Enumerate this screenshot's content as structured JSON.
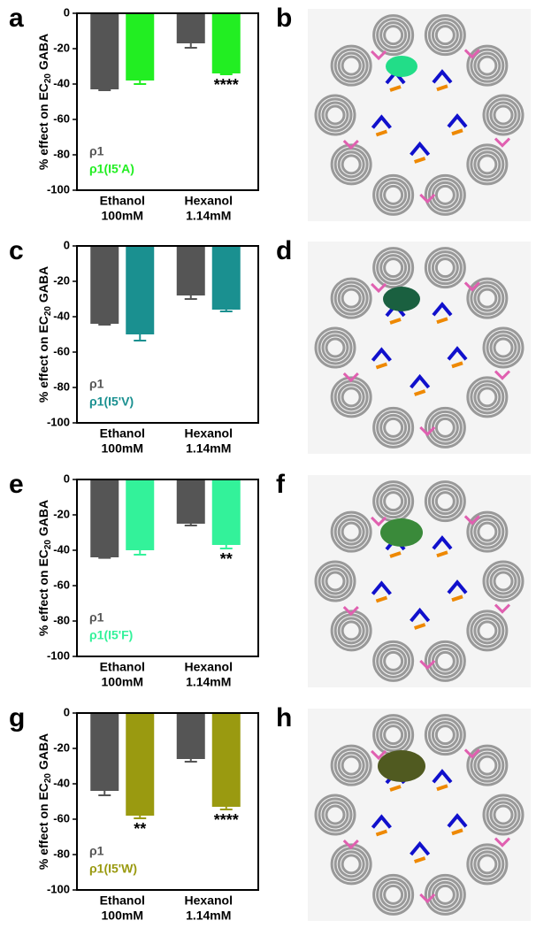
{
  "chart_data": [
    {
      "type": "bar",
      "panel": "a",
      "ylabel": {
        "text": "% effect on EC",
        "subscript": "20",
        "suffix": " GABA"
      },
      "categories": [
        [
          "Ethanol",
          "100mM"
        ],
        [
          "Hexanol",
          "1.14mM"
        ]
      ],
      "series": [
        {
          "name": "ρ1",
          "color": "#555555",
          "values": [
            -43,
            -17
          ],
          "errors": [
            0.5,
            2.5
          ]
        },
        {
          "name": "ρ1(I5'A)",
          "color": "#22ee22",
          "values": [
            -38,
            -34
          ],
          "errors": [
            2,
            0.5
          ],
          "significance": [
            null,
            "****"
          ]
        }
      ],
      "ylim": [
        -100,
        0
      ],
      "yticks": [
        0,
        -20,
        -40,
        -60,
        -80,
        -100
      ]
    },
    {
      "type": "bar",
      "panel": "c",
      "ylabel": {
        "text": "% effect on EC",
        "subscript": "20",
        "suffix": " GABA"
      },
      "categories": [
        [
          "Ethanol",
          "100mM"
        ],
        [
          "Hexanol",
          "1.14mM"
        ]
      ],
      "series": [
        {
          "name": "ρ1",
          "color": "#555555",
          "values": [
            -44,
            -28
          ],
          "errors": [
            0.5,
            2
          ]
        },
        {
          "name": "ρ1(I5'V)",
          "color": "#1a9090",
          "values": [
            -50,
            -36
          ],
          "errors": [
            3.5,
            1
          ]
        }
      ],
      "ylim": [
        -100,
        0
      ],
      "yticks": [
        0,
        -20,
        -40,
        -60,
        -80,
        -100
      ]
    },
    {
      "type": "bar",
      "panel": "e",
      "ylabel": {
        "text": "% effect on EC",
        "subscript": "20",
        "suffix": " GABA"
      },
      "categories": [
        [
          "Ethanol",
          "100mM"
        ],
        [
          "Hexanol",
          "1.14mM"
        ]
      ],
      "series": [
        {
          "name": "ρ1",
          "color": "#555555",
          "values": [
            -44,
            -25
          ],
          "errors": [
            0.3,
            1
          ]
        },
        {
          "name": "ρ1(I5'F)",
          "color": "#33f29a",
          "values": [
            -40,
            -37
          ],
          "errors": [
            2.5,
            2
          ],
          "significance": [
            null,
            "**"
          ]
        }
      ],
      "ylim": [
        -100,
        0
      ],
      "yticks": [
        0,
        -20,
        -40,
        -60,
        -80,
        -100
      ]
    },
    {
      "type": "bar",
      "panel": "g",
      "ylabel": {
        "text": "% effect on EC",
        "subscript": "20",
        "suffix": " GABA"
      },
      "categories": [
        [
          "Ethanol",
          "100mM"
        ],
        [
          "Hexanol",
          "1.14mM"
        ]
      ],
      "series": [
        {
          "name": "ρ1",
          "color": "#555555",
          "values": [
            -44,
            -26
          ],
          "errors": [
            2.5,
            1.5
          ]
        },
        {
          "name": "ρ1(I5'W)",
          "color": "#9a9a10",
          "values": [
            -58,
            -53
          ],
          "errors": [
            1.5,
            1.5
          ],
          "significance": [
            "**",
            "****"
          ]
        }
      ],
      "ylim": [
        -100,
        0
      ],
      "yticks": [
        0,
        -20,
        -40,
        -60,
        -80,
        -100
      ]
    }
  ],
  "images": [
    {
      "panel": "b"
    },
    {
      "panel": "d"
    },
    {
      "panel": "f"
    },
    {
      "panel": "h"
    }
  ]
}
